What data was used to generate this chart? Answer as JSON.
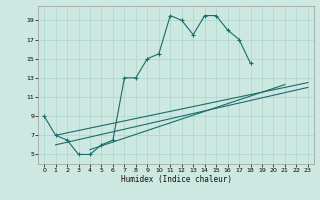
{
  "xlabel": "Humidex (Indice chaleur)",
  "bg_color": "#cce8e0",
  "grid_color": "#b0d8d0",
  "line_color": "#1a6b6b",
  "xlim": [
    -0.5,
    23.5
  ],
  "ylim": [
    4,
    20.5
  ],
  "xticks": [
    0,
    1,
    2,
    3,
    4,
    5,
    6,
    7,
    8,
    9,
    10,
    11,
    12,
    13,
    14,
    15,
    16,
    17,
    18,
    19,
    20,
    21,
    22,
    23
  ],
  "yticks": [
    5,
    7,
    9,
    11,
    13,
    15,
    17,
    19
  ],
  "curve1_x": [
    0,
    1,
    2,
    3,
    4,
    5,
    6,
    7,
    8,
    9,
    10,
    11,
    12,
    13,
    14,
    15,
    16,
    17,
    18
  ],
  "curve1_y": [
    9,
    7,
    6.5,
    5,
    5,
    6,
    6.5,
    13,
    13,
    15,
    15.5,
    19.5,
    19,
    17.5,
    19.5,
    19.5,
    18,
    17,
    14.5
  ],
  "line1_x": [
    1,
    23
  ],
  "line1_y": [
    6.0,
    12.0
  ],
  "line2_x": [
    1,
    23
  ],
  "line2_y": [
    7.0,
    12.5
  ],
  "line3_x": [
    4,
    21
  ],
  "line3_y": [
    5.5,
    12.3
  ]
}
